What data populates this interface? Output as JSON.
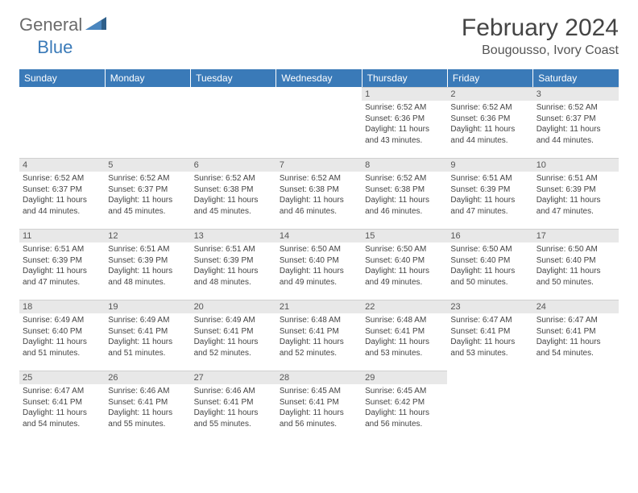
{
  "logo": {
    "general": "General",
    "blue": "Blue"
  },
  "title": "February 2024",
  "location": "Bougousso, Ivory Coast",
  "weekdays": [
    "Sunday",
    "Monday",
    "Tuesday",
    "Wednesday",
    "Thursday",
    "Friday",
    "Saturday"
  ],
  "colors": {
    "header_bg": "#3a7ab8",
    "header_text": "#ffffff",
    "daynum_bg": "#e8e8e8",
    "text": "#444444",
    "logo_gray": "#6b6b6b",
    "logo_blue": "#3a7ab8"
  },
  "calendar": {
    "first_weekday_index": 4,
    "num_days": 29
  },
  "days": {
    "1": {
      "sunrise": "6:52 AM",
      "sunset": "6:36 PM",
      "daylight": "11 hours and 43 minutes."
    },
    "2": {
      "sunrise": "6:52 AM",
      "sunset": "6:36 PM",
      "daylight": "11 hours and 44 minutes."
    },
    "3": {
      "sunrise": "6:52 AM",
      "sunset": "6:37 PM",
      "daylight": "11 hours and 44 minutes."
    },
    "4": {
      "sunrise": "6:52 AM",
      "sunset": "6:37 PM",
      "daylight": "11 hours and 44 minutes."
    },
    "5": {
      "sunrise": "6:52 AM",
      "sunset": "6:37 PM",
      "daylight": "11 hours and 45 minutes."
    },
    "6": {
      "sunrise": "6:52 AM",
      "sunset": "6:38 PM",
      "daylight": "11 hours and 45 minutes."
    },
    "7": {
      "sunrise": "6:52 AM",
      "sunset": "6:38 PM",
      "daylight": "11 hours and 46 minutes."
    },
    "8": {
      "sunrise": "6:52 AM",
      "sunset": "6:38 PM",
      "daylight": "11 hours and 46 minutes."
    },
    "9": {
      "sunrise": "6:51 AM",
      "sunset": "6:39 PM",
      "daylight": "11 hours and 47 minutes."
    },
    "10": {
      "sunrise": "6:51 AM",
      "sunset": "6:39 PM",
      "daylight": "11 hours and 47 minutes."
    },
    "11": {
      "sunrise": "6:51 AM",
      "sunset": "6:39 PM",
      "daylight": "11 hours and 47 minutes."
    },
    "12": {
      "sunrise": "6:51 AM",
      "sunset": "6:39 PM",
      "daylight": "11 hours and 48 minutes."
    },
    "13": {
      "sunrise": "6:51 AM",
      "sunset": "6:39 PM",
      "daylight": "11 hours and 48 minutes."
    },
    "14": {
      "sunrise": "6:50 AM",
      "sunset": "6:40 PM",
      "daylight": "11 hours and 49 minutes."
    },
    "15": {
      "sunrise": "6:50 AM",
      "sunset": "6:40 PM",
      "daylight": "11 hours and 49 minutes."
    },
    "16": {
      "sunrise": "6:50 AM",
      "sunset": "6:40 PM",
      "daylight": "11 hours and 50 minutes."
    },
    "17": {
      "sunrise": "6:50 AM",
      "sunset": "6:40 PM",
      "daylight": "11 hours and 50 minutes."
    },
    "18": {
      "sunrise": "6:49 AM",
      "sunset": "6:40 PM",
      "daylight": "11 hours and 51 minutes."
    },
    "19": {
      "sunrise": "6:49 AM",
      "sunset": "6:41 PM",
      "daylight": "11 hours and 51 minutes."
    },
    "20": {
      "sunrise": "6:49 AM",
      "sunset": "6:41 PM",
      "daylight": "11 hours and 52 minutes."
    },
    "21": {
      "sunrise": "6:48 AM",
      "sunset": "6:41 PM",
      "daylight": "11 hours and 52 minutes."
    },
    "22": {
      "sunrise": "6:48 AM",
      "sunset": "6:41 PM",
      "daylight": "11 hours and 53 minutes."
    },
    "23": {
      "sunrise": "6:47 AM",
      "sunset": "6:41 PM",
      "daylight": "11 hours and 53 minutes."
    },
    "24": {
      "sunrise": "6:47 AM",
      "sunset": "6:41 PM",
      "daylight": "11 hours and 54 minutes."
    },
    "25": {
      "sunrise": "6:47 AM",
      "sunset": "6:41 PM",
      "daylight": "11 hours and 54 minutes."
    },
    "26": {
      "sunrise": "6:46 AM",
      "sunset": "6:41 PM",
      "daylight": "11 hours and 55 minutes."
    },
    "27": {
      "sunrise": "6:46 AM",
      "sunset": "6:41 PM",
      "daylight": "11 hours and 55 minutes."
    },
    "28": {
      "sunrise": "6:45 AM",
      "sunset": "6:41 PM",
      "daylight": "11 hours and 56 minutes."
    },
    "29": {
      "sunrise": "6:45 AM",
      "sunset": "6:42 PM",
      "daylight": "11 hours and 56 minutes."
    }
  },
  "labels": {
    "sunrise_prefix": "Sunrise: ",
    "sunset_prefix": "Sunset: ",
    "daylight_prefix": "Daylight: "
  }
}
